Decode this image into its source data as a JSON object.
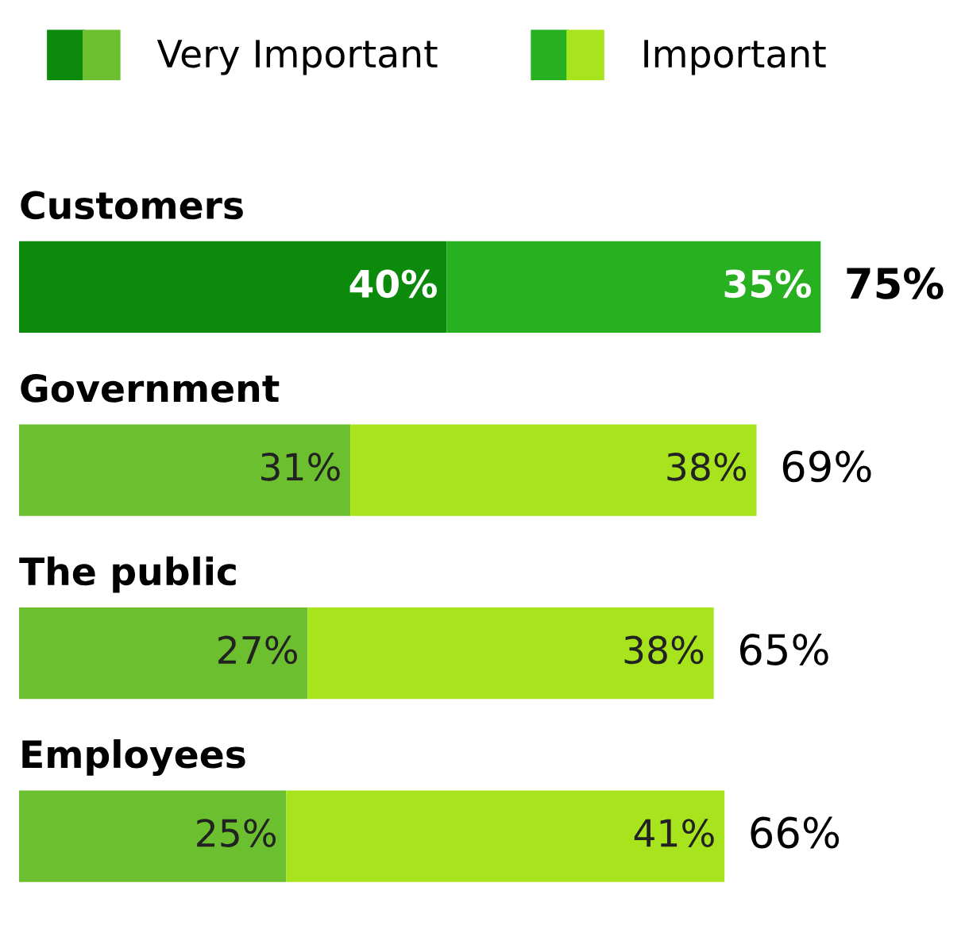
{
  "chart_data": {
    "type": "bar",
    "orientation": "horizontal",
    "stacked": true,
    "legend": "top left",
    "categories": [
      "Customers",
      "Government",
      "The public",
      "Employees"
    ],
    "series": [
      {
        "name": "Very Important",
        "color": "#0b8a0b",
        "colors": [
          "#0b8a0b",
          "#6cbf2f",
          "#6cbf2f",
          "#6cbf2f"
        ],
        "values": [
          40,
          31,
          27,
          25
        ],
        "value_labels": [
          "40%",
          "31%",
          "27%",
          "25%"
        ]
      },
      {
        "name": "Important",
        "color": "#27b020",
        "colors": [
          "#27b020",
          "#a8e41e",
          "#a8e41e",
          "#a8e41e"
        ],
        "values": [
          35,
          38,
          38,
          41
        ],
        "value_labels": [
          "35%",
          "38%",
          "38%",
          "41%"
        ]
      }
    ],
    "totals": [
      "75%",
      "69%",
      "65%",
      "66%"
    ]
  }
}
